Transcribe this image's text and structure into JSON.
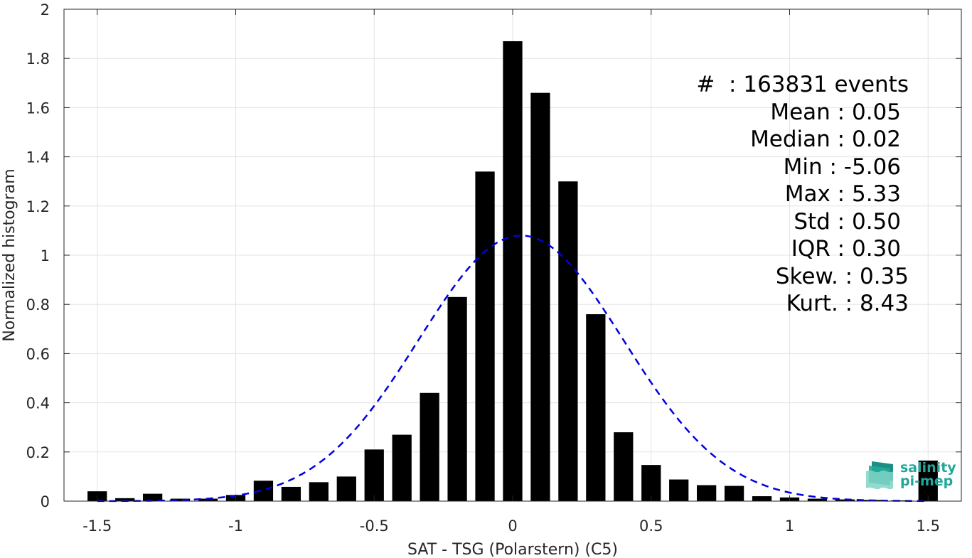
{
  "chart_data": {
    "type": "bar",
    "xlabel": "SAT - TSG (Polarstern) (C5)",
    "ylabel": "Normalized histogram",
    "xlim": [
      -1.62,
      1.62
    ],
    "ylim": [
      0,
      2
    ],
    "xticks": [
      -1.5,
      -1,
      -0.5,
      0,
      0.5,
      1,
      1.5
    ],
    "xtick_labels": [
      "-1.5",
      "-1",
      "-0.5",
      "0",
      "0.5",
      "1",
      "1.5"
    ],
    "yticks": [
      0,
      0.2,
      0.4,
      0.6,
      0.8,
      1,
      1.2,
      1.4,
      1.6,
      1.8,
      2
    ],
    "ytick_labels": [
      "0",
      "0.2",
      "0.4",
      "0.6",
      "0.8",
      "1",
      "1.2",
      "1.4",
      "1.6",
      "1.8",
      "2"
    ],
    "grid": true,
    "bar_color": "#000000",
    "bar_width": 0.07,
    "bins": [
      -1.5,
      -1.4,
      -1.3,
      -1.2,
      -1.1,
      -1.0,
      -0.9,
      -0.8,
      -0.7,
      -0.6,
      -0.5,
      -0.4,
      -0.3,
      -0.2,
      -0.1,
      0.0,
      0.1,
      0.2,
      0.3,
      0.4,
      0.5,
      0.6,
      0.7,
      0.8,
      0.9,
      1.0,
      1.1,
      1.2,
      1.3,
      1.4,
      1.5
    ],
    "values": [
      0.04,
      0.012,
      0.03,
      0.01,
      0.01,
      0.025,
      0.083,
      0.058,
      0.077,
      0.1,
      0.21,
      0.27,
      0.44,
      0.83,
      1.34,
      1.87,
      1.66,
      1.3,
      0.76,
      0.28,
      0.147,
      0.088,
      0.065,
      0.062,
      0.02,
      0.015,
      0.01,
      0.007,
      0.005,
      0.003,
      0.165
    ],
    "fit": {
      "type": "gaussian",
      "mean": 0.03,
      "std": 0.37,
      "peak": 1.08,
      "color": "#0000e0",
      "style": "dashed"
    }
  },
  "stats": {
    "events": "#  : 163831 events",
    "mean": "Mean : 0.05",
    "median": "Median : 0.02",
    "min": "Min : -5.06",
    "max": "Max : 5.33",
    "std": "Std : 0.50",
    "iqr": "IQR : 0.30",
    "skew": "Skew. : 0.35",
    "kurt": "Kurt. : 8.43"
  },
  "logo": {
    "line1": "salinity",
    "line2": "pi-mep",
    "icon": "wave-stack-icon",
    "color": "#1fa89a"
  }
}
